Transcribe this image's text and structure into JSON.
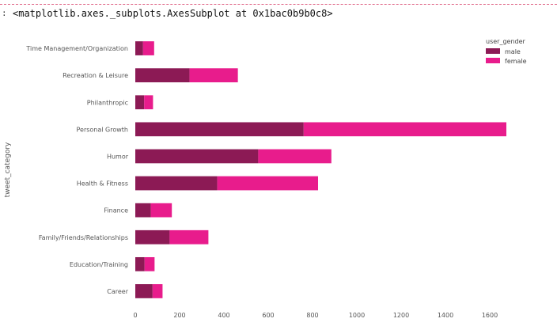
{
  "cell": {
    "prompt": ":",
    "output_text": "<matplotlib.axes._subplots.AxesSubplot at 0x1bac0b9b0c8>"
  },
  "chart_data": {
    "type": "bar",
    "orientation": "horizontal",
    "stacked": true,
    "categories": [
      "Time Management/Organization",
      "Recreation & Leisure",
      "Philanthropic",
      "Personal Growth",
      "Humor",
      "Health & Fitness",
      "Finance",
      "Family/Friends/Relationships",
      "Education/Training",
      "Career"
    ],
    "series": [
      {
        "name": "male",
        "values": [
          35,
          245,
          40,
          760,
          555,
          370,
          70,
          155,
          42,
          78
        ],
        "color": "#8c1a55"
      },
      {
        "name": "female",
        "values": [
          50,
          218,
          40,
          915,
          330,
          455,
          95,
          175,
          45,
          45
        ],
        "color": "#e81c8c"
      }
    ],
    "xlabel": "",
    "ylabel": "tweet_category",
    "xlim": [
      0,
      1750
    ],
    "x_ticks": [
      0,
      200,
      400,
      600,
      800,
      1000,
      1200,
      1400,
      1600
    ],
    "legend": {
      "title": "user_gender",
      "placement": "top-right"
    },
    "grid": false
  }
}
